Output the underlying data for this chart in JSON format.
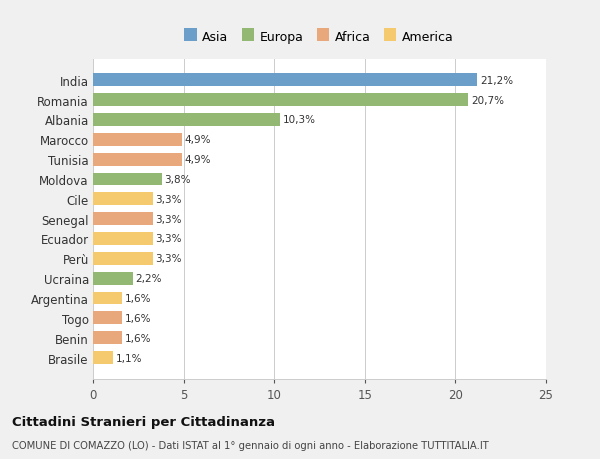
{
  "categories": [
    "India",
    "Romania",
    "Albania",
    "Marocco",
    "Tunisia",
    "Moldova",
    "Cile",
    "Senegal",
    "Ecuador",
    "Perù",
    "Ucraina",
    "Argentina",
    "Togo",
    "Benin",
    "Brasile"
  ],
  "values": [
    21.2,
    20.7,
    10.3,
    4.9,
    4.9,
    3.8,
    3.3,
    3.3,
    3.3,
    3.3,
    2.2,
    1.6,
    1.6,
    1.6,
    1.1
  ],
  "labels": [
    "21,2%",
    "20,7%",
    "10,3%",
    "4,9%",
    "4,9%",
    "3,8%",
    "3,3%",
    "3,3%",
    "3,3%",
    "3,3%",
    "2,2%",
    "1,6%",
    "1,6%",
    "1,6%",
    "1,1%"
  ],
  "colors": [
    "#6b9ec8",
    "#93b874",
    "#93b874",
    "#e8a87c",
    "#e8a87c",
    "#93b874",
    "#f5c96e",
    "#e8a87c",
    "#f5c96e",
    "#f5c96e",
    "#93b874",
    "#f5c96e",
    "#e8a87c",
    "#e8a87c",
    "#f5c96e"
  ],
  "continents": [
    "Asia",
    "Europa",
    "Europa",
    "Africa",
    "Africa",
    "Europa",
    "America",
    "Africa",
    "America",
    "America",
    "Europa",
    "America",
    "Africa",
    "Africa",
    "America"
  ],
  "legend_labels": [
    "Asia",
    "Europa",
    "Africa",
    "America"
  ],
  "legend_colors": [
    "#6b9ec8",
    "#93b874",
    "#e8a87c",
    "#f5c96e"
  ],
  "xlim": [
    0,
    25
  ],
  "xticks": [
    0,
    5,
    10,
    15,
    20,
    25
  ],
  "title": "Cittadini Stranieri per Cittadinanza",
  "subtitle": "COMUNE DI COMAZZO (LO) - Dati ISTAT al 1° gennaio di ogni anno - Elaborazione TUTTITALIA.IT",
  "background_color": "#f0f0f0",
  "bar_background": "#ffffff"
}
